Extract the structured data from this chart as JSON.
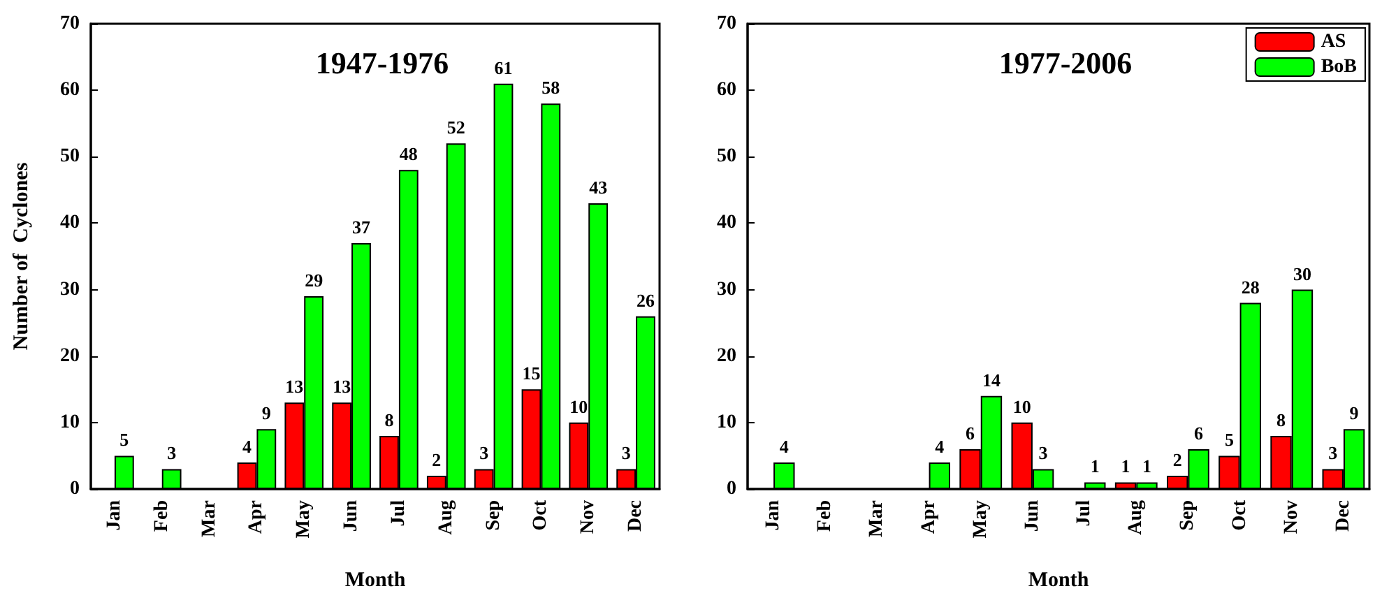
{
  "chart_data": [
    {
      "type": "bar",
      "title": "1947-1976",
      "xlabel": "Month",
      "ylabel": "Number of  Cyclones",
      "categories": [
        "Jan",
        "Feb",
        "Mar",
        "Apr",
        "May",
        "Jun",
        "Jul",
        "Aug",
        "Sep",
        "Oct",
        "Nov",
        "Dec"
      ],
      "ylim": [
        0,
        70
      ],
      "yticks": [
        0,
        10,
        20,
        30,
        40,
        50,
        60,
        70
      ],
      "grid": false,
      "legend": false,
      "series": [
        {
          "color": "#ff0000",
          "values": [
            0,
            0,
            0,
            4,
            13,
            13,
            8,
            2,
            3,
            15,
            10,
            3
          ],
          "value_labels": [
            null,
            null,
            null,
            "4",
            "13",
            "13",
            "8",
            "2",
            "3",
            "15",
            "10",
            "3"
          ]
        },
        {
          "color": "#00ff00",
          "values": [
            5,
            3,
            0,
            9,
            29,
            37,
            48,
            52,
            61,
            58,
            43,
            26
          ],
          "value_labels": [
            "5",
            "3",
            null,
            "9",
            "29",
            "37",
            "48",
            "52",
            "61",
            "58",
            "43",
            "26"
          ]
        }
      ]
    },
    {
      "type": "bar",
      "title": "1977-2006",
      "xlabel": "Month",
      "categories": [
        "Jan",
        "Feb",
        "Mar",
        "Apr",
        "May",
        "Jun",
        "Jul",
        "Aug",
        "Sep",
        "Oct",
        "Nov",
        "Dec"
      ],
      "ylim": [
        0,
        70
      ],
      "yticks": [
        0,
        10,
        20,
        30,
        40,
        50,
        60,
        70
      ],
      "grid": false,
      "legend": "top right",
      "series": [
        {
          "name": "AS",
          "color": "#ff0000",
          "values": [
            0,
            0,
            0,
            0,
            6,
            10,
            0,
            1,
            2,
            5,
            8,
            3
          ],
          "value_labels": [
            null,
            null,
            null,
            null,
            "6",
            "10",
            null,
            "1",
            "2",
            "5",
            "8",
            "3"
          ]
        },
        {
          "name": "BoB",
          "color": "#00ff00",
          "values": [
            4,
            0,
            0,
            4,
            14,
            3,
            1,
            1,
            6,
            28,
            30,
            9
          ],
          "value_labels": [
            "4",
            null,
            null,
            "4",
            "14",
            "3",
            "1",
            "1",
            "6",
            "28",
            "30",
            "9"
          ]
        }
      ]
    }
  ]
}
